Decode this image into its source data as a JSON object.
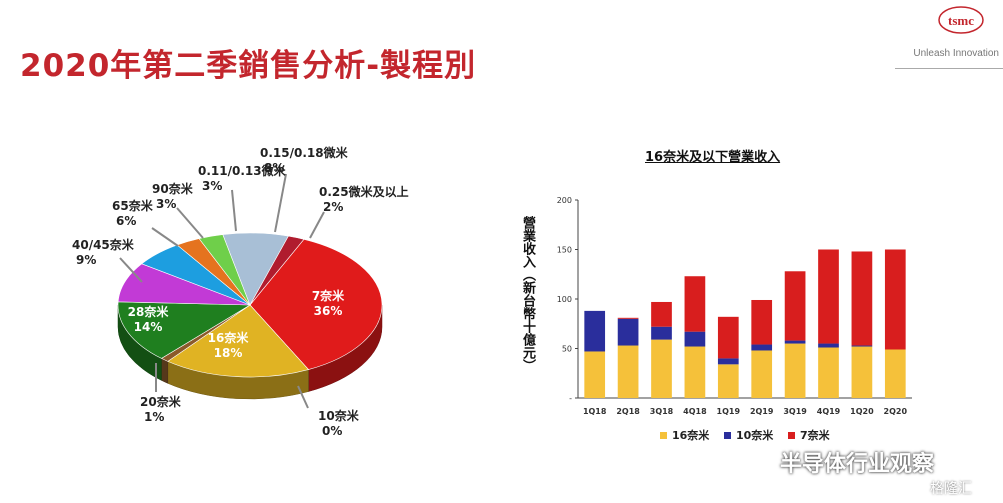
{
  "title": "2020年第二季銷售分析-製程別",
  "brand": {
    "logo_text": "tsmc",
    "tagline": "Unleash Innovation",
    "accent": "#c3262d"
  },
  "watermark": {
    "main": "半导体行业观察",
    "sub": "格隆汇"
  },
  "chart_data": [
    {
      "type": "pie",
      "title": "",
      "slices": [
        {
          "label": "7奈米",
          "value": 36,
          "pct": "36%",
          "color": "#e01b1b"
        },
        {
          "label": "10奈米",
          "value": 0,
          "pct": "0%",
          "color": "#8b8b8b"
        },
        {
          "label": "16奈米",
          "value": 18,
          "pct": "18%",
          "color": "#e0b323"
        },
        {
          "label": "20奈米",
          "value": 1,
          "pct": "1%",
          "color": "#8b5a2b"
        },
        {
          "label": "28奈米",
          "value": 14,
          "pct": "14%",
          "color": "#1f7f1f"
        },
        {
          "label": "40/45奈米",
          "value": 9,
          "pct": "9%",
          "color": "#c23ad6"
        },
        {
          "label": "65奈米",
          "value": 6,
          "pct": "6%",
          "color": "#1d9ee0"
        },
        {
          "label": "90奈米",
          "value": 3,
          "pct": "3%",
          "color": "#e5731f"
        },
        {
          "label": "0.11/0.13微米",
          "value": 3,
          "pct": "3%",
          "color": "#6fcf4a"
        },
        {
          "label": "0.15/0.18微米",
          "value": 8,
          "pct": "8%",
          "color": "#a8bfd6"
        },
        {
          "label": "0.25微米及以上",
          "value": 2,
          "pct": "2%",
          "color": "#b01c2e"
        }
      ]
    },
    {
      "type": "bar",
      "stacked": true,
      "title": "16奈米及以下營業收入",
      "ylabel": "營業收入（新台幣十億元）",
      "ylim": [
        0,
        200
      ],
      "yticks": [
        "0",
        "50",
        "100",
        "150",
        "200"
      ],
      "categories": [
        "1Q18",
        "2Q18",
        "3Q18",
        "4Q18",
        "1Q19",
        "2Q19",
        "3Q19",
        "4Q19",
        "1Q20",
        "2Q20"
      ],
      "series": [
        {
          "name": "16奈米",
          "color": "#f5c13a",
          "values": [
            47,
            53,
            59,
            52,
            34,
            48,
            55,
            51,
            52,
            49
          ]
        },
        {
          "name": "10奈米",
          "color": "#2a2e9c",
          "values": [
            41,
            27,
            13,
            15,
            6,
            6,
            3,
            4,
            1,
            0
          ]
        },
        {
          "name": "7奈米",
          "color": "#d81e1e",
          "values": [
            0,
            1,
            25,
            56,
            42,
            45,
            70,
            95,
            95,
            101
          ]
        }
      ],
      "legend": "bottom"
    }
  ]
}
